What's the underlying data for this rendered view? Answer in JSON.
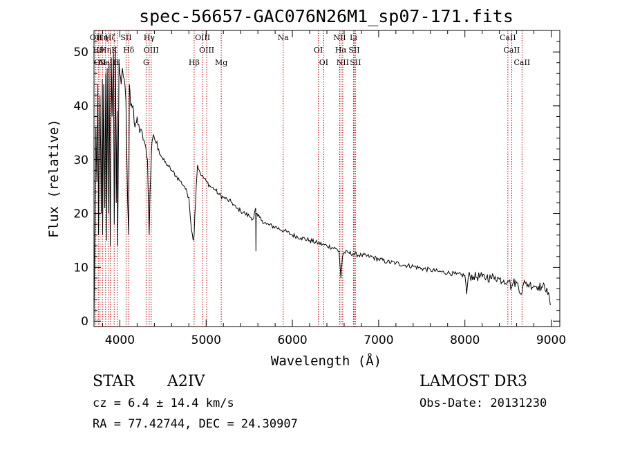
{
  "chart_data": {
    "type": "line",
    "title": "spec-56657-GAC076N26M1_sp07-171.fits",
    "xlabel": "Wavelength (Å)",
    "ylabel": "Flux (relative)",
    "xlim": [
      3700,
      9100
    ],
    "ylim": [
      -1,
      54
    ],
    "grid": false,
    "x_ticks": [
      4000,
      5000,
      6000,
      7000,
      8000,
      9000
    ],
    "y_ticks": [
      0,
      10,
      20,
      30,
      40,
      50
    ],
    "series": [
      {
        "name": "flux",
        "x": [
          3700,
          3712,
          3722,
          3734,
          3745,
          3752,
          3760,
          3770,
          3785,
          3797,
          3800,
          3812,
          3825,
          3836,
          3845,
          3853,
          3865,
          3875,
          3889,
          3900,
          3910,
          3925,
          3935,
          3950,
          3958,
          3968,
          3975,
          3990,
          4000,
          4015,
          4030,
          4050,
          4070,
          4090,
          4102,
          4110,
          4125,
          4150,
          4175,
          4200,
          4230,
          4260,
          4290,
          4320,
          4340,
          4350,
          4365,
          4380,
          4400,
          4450,
          4500,
          4550,
          4600,
          4650,
          4700,
          4750,
          4800,
          4830,
          4850,
          4861,
          4870,
          4885,
          4900,
          4920,
          4950,
          5000,
          5050,
          5100,
          5150,
          5200,
          5250,
          5300,
          5350,
          5400,
          5450,
          5500,
          5550,
          5575,
          5577,
          5580,
          5600,
          5650,
          5700,
          5800,
          5900,
          6000,
          6100,
          6200,
          6300,
          6400,
          6500,
          6540,
          6563,
          6580,
          6600,
          6650,
          6700,
          6800,
          6900,
          7000,
          7100,
          7200,
          7300,
          7400,
          7500,
          7600,
          7700,
          7800,
          7900,
          8000,
          8020,
          8040,
          8100,
          8200,
          8250,
          8300,
          8350,
          8400,
          8450,
          8498,
          8510,
          8542,
          8560,
          8600,
          8662,
          8680,
          8700,
          8750,
          8800,
          8850,
          8900,
          8950,
          8990
        ],
        "y": [
          0,
          18,
          36,
          26,
          44,
          16,
          32,
          42,
          20,
          45,
          16,
          44,
          21,
          46,
          15,
          47,
          20,
          48,
          14,
          49,
          38,
          50,
          18,
          51,
          22,
          39,
          14,
          48,
          46,
          44,
          47,
          45,
          41,
          22,
          16,
          44,
          40,
          40,
          36,
          38,
          35,
          35,
          33,
          30,
          16,
          24,
          31,
          34,
          34,
          32,
          30,
          29,
          28,
          27,
          26,
          25,
          23,
          17,
          15,
          16,
          20,
          25,
          29,
          28,
          27,
          26,
          25,
          24.5,
          23.5,
          23,
          22.5,
          22,
          21,
          20.5,
          20,
          19.5,
          19,
          21,
          13,
          20,
          19.5,
          18.7,
          18,
          17.5,
          16.8,
          16,
          15.5,
          15,
          14.5,
          14,
          13.5,
          13,
          8,
          12,
          12.8,
          12.7,
          12.5,
          12.2,
          12,
          11.5,
          11,
          10.8,
          10.4,
          10.2,
          9.8,
          9.5,
          9.2,
          9,
          8.7,
          8.5,
          5,
          8.4,
          8.3,
          8.2,
          8.2,
          8,
          8.3,
          7.8,
          7.6,
          7.5,
          7.4,
          6.3,
          7.2,
          7.1,
          5.2,
          7,
          7,
          6.8,
          6.6,
          6.5,
          6.3,
          6.2,
          3
        ]
      }
    ],
    "line_markers": [
      {
        "wave": 3722,
        "label": "OII"
      },
      {
        "wave": 3750,
        "label": "Hθ"
      },
      {
        "wave": 3770,
        "label": "OII"
      },
      {
        "wave": 3798,
        "label": "Hη"
      },
      {
        "wave": 3835,
        "label": "Hη"
      },
      {
        "wave": 3869,
        "label": "NeIII"
      },
      {
        "wave": 3889,
        "label": "Hζ"
      },
      {
        "wave": 3934,
        "label": "K"
      },
      {
        "wave": 3969,
        "label": "H"
      },
      {
        "wave": 4072,
        "label": "SII"
      },
      {
        "wave": 4102,
        "label": "Hδ"
      },
      {
        "wave": 4304,
        "label": "G"
      },
      {
        "wave": 4340,
        "label": "Hγ"
      },
      {
        "wave": 4363,
        "label": "OIII"
      },
      {
        "wave": 4861,
        "label": "Hβ"
      },
      {
        "wave": 4959,
        "label": "OIII"
      },
      {
        "wave": 5007,
        "label": "OIII"
      },
      {
        "wave": 5175,
        "label": "Mg"
      },
      {
        "wave": 5893,
        "label": "Na"
      },
      {
        "wave": 6300,
        "label": "OI"
      },
      {
        "wave": 6363,
        "label": "OI"
      },
      {
        "wave": 6548,
        "label": "NII"
      },
      {
        "wave": 6563,
        "label": "Hα"
      },
      {
        "wave": 6583,
        "label": "NII"
      },
      {
        "wave": 6708,
        "label": "Li"
      },
      {
        "wave": 6716,
        "label": "SII"
      },
      {
        "wave": 6731,
        "label": "SII"
      },
      {
        "wave": 8498,
        "label": "CaII"
      },
      {
        "wave": 8542,
        "label": "CaII"
      },
      {
        "wave": 8662,
        "label": "CaII"
      }
    ],
    "marker_color": "#c00000"
  },
  "info": {
    "class_text": "STAR",
    "subclass_text": "A2IV",
    "survey": "LAMOST DR3",
    "cz": "cz = 6.4 ± 14.4 km/s",
    "obs_date": "Obs-Date: 20131230",
    "radec": "RA =  77.42744, DEC =  24.30907"
  }
}
